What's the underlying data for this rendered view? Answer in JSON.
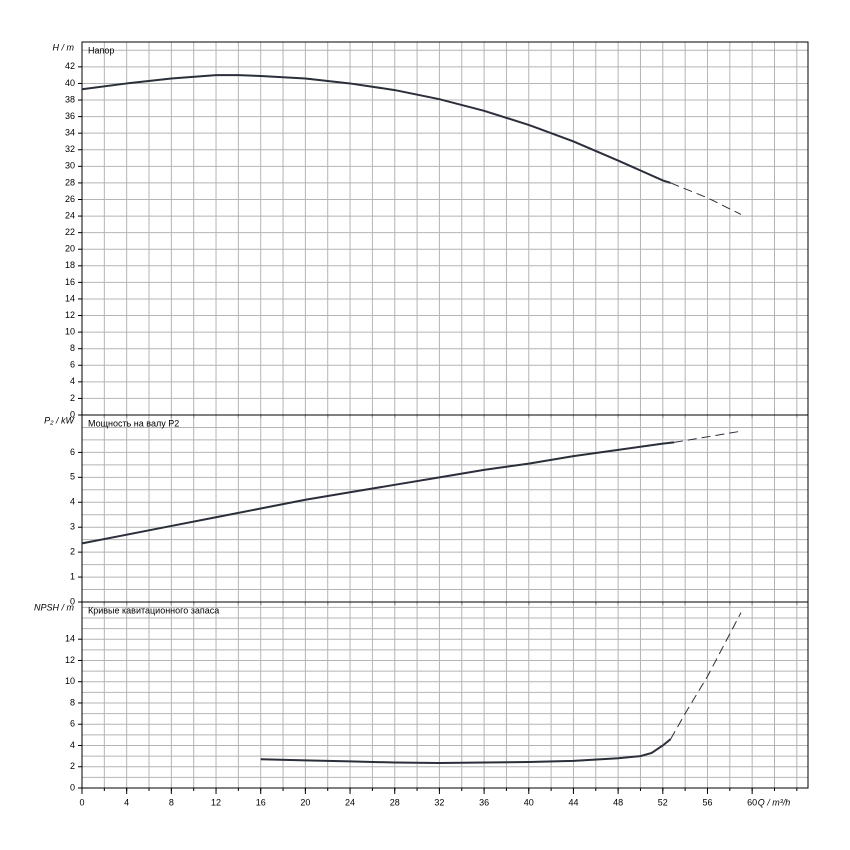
{
  "chart_data": [
    {
      "type": "line",
      "ylabel": "H / m",
      "title": "Напор",
      "xlim": [
        0,
        65
      ],
      "xgrid_step": 2,
      "ylim": [
        0,
        45
      ],
      "ygrid_step": 2,
      "yticks": [
        0,
        2,
        4,
        6,
        8,
        10,
        12,
        14,
        16,
        18,
        20,
        22,
        24,
        26,
        28,
        30,
        32,
        34,
        36,
        38,
        40,
        42
      ],
      "series": [
        {
          "color": "#2b2f3a",
          "dashed": false,
          "x": [
            0,
            4,
            8,
            12,
            14,
            16,
            20,
            24,
            28,
            32,
            36,
            40,
            44,
            48,
            52,
            52.7
          ],
          "values": [
            39.3,
            40,
            40.6,
            41,
            41,
            40.9,
            40.6,
            40,
            39.2,
            38.1,
            36.7,
            35,
            33,
            30.7,
            28.3,
            28
          ]
        },
        {
          "color": "#2b2f3a",
          "dashed": true,
          "x": [
            52.7,
            56,
            59
          ],
          "values": [
            28,
            26.2,
            24.2
          ]
        }
      ]
    },
    {
      "type": "line",
      "ylabel": "P₂ / kW",
      "title": "Мощность на валу P2",
      "xlim": [
        0,
        65
      ],
      "xgrid_step": 2,
      "ylim": [
        0,
        7.5
      ],
      "ygrid_step": 0.5,
      "yticks": [
        0,
        1,
        2,
        3,
        4,
        5,
        6
      ],
      "series": [
        {
          "color": "#2b2f3a",
          "dashed": false,
          "x": [
            0,
            4,
            8,
            12,
            16,
            20,
            24,
            28,
            32,
            36,
            40,
            44,
            48,
            52,
            53
          ],
          "values": [
            2.35,
            2.7,
            3.05,
            3.4,
            3.75,
            4.1,
            4.4,
            4.7,
            5,
            5.3,
            5.55,
            5.85,
            6.1,
            6.35,
            6.4
          ]
        },
        {
          "color": "#2b2f3a",
          "dashed": true,
          "x": [
            53,
            59
          ],
          "values": [
            6.4,
            6.85
          ]
        }
      ]
    },
    {
      "type": "line",
      "ylabel": "NPSH / m",
      "title": "Кривые кавитационного запаса",
      "xlabel": "Q / m³/h",
      "xlim": [
        0,
        65
      ],
      "xgrid_step": 2,
      "ylim": [
        0,
        17.5
      ],
      "ygrid_step": 1,
      "xticks": [
        0,
        4,
        8,
        12,
        16,
        20,
        24,
        28,
        32,
        36,
        40,
        44,
        48,
        52,
        56,
        60
      ],
      "yticks": [
        0,
        2,
        4,
        6,
        8,
        10,
        12,
        14
      ],
      "series": [
        {
          "color": "#2b2f3a",
          "dashed": false,
          "x": [
            16,
            20,
            24,
            28,
            32,
            36,
            40,
            44,
            48,
            50,
            51,
            52,
            52.7
          ],
          "values": [
            2.7,
            2.6,
            2.5,
            2.4,
            2.35,
            2.4,
            2.45,
            2.55,
            2.8,
            3,
            3.3,
            4,
            4.6
          ]
        },
        {
          "color": "#2b2f3a",
          "dashed": true,
          "x": [
            52.7,
            54,
            56,
            58,
            59
          ],
          "values": [
            4.6,
            7,
            10.5,
            14.5,
            16.5
          ]
        }
      ]
    }
  ]
}
